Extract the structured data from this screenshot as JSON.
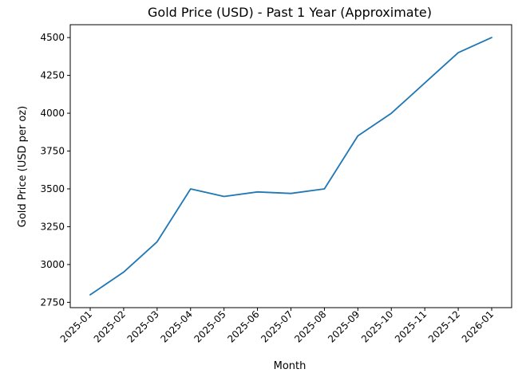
{
  "chart_data": {
    "type": "line",
    "title": "Gold Price (USD) - Past 1 Year (Approximate)",
    "xlabel": "Month",
    "ylabel": "Gold Price (USD per oz)",
    "categories": [
      "2025-01",
      "2025-02",
      "2025-03",
      "2025-04",
      "2025-05",
      "2025-06",
      "2025-07",
      "2025-08",
      "2025-09",
      "2025-10",
      "2025-11",
      "2025-12",
      "2026-01"
    ],
    "series": [
      {
        "values": [
          2800,
          2950,
          3150,
          3500,
          3450,
          3480,
          3470,
          3500,
          3850,
          4000,
          4200,
          4400,
          4500
        ],
        "color": "#1f77b4"
      }
    ],
    "yticks": [
      2750,
      3000,
      3250,
      3500,
      3750,
      4000,
      4250,
      4500
    ],
    "ylim": [
      2715,
      4585
    ],
    "grid": false,
    "legend": "none"
  }
}
